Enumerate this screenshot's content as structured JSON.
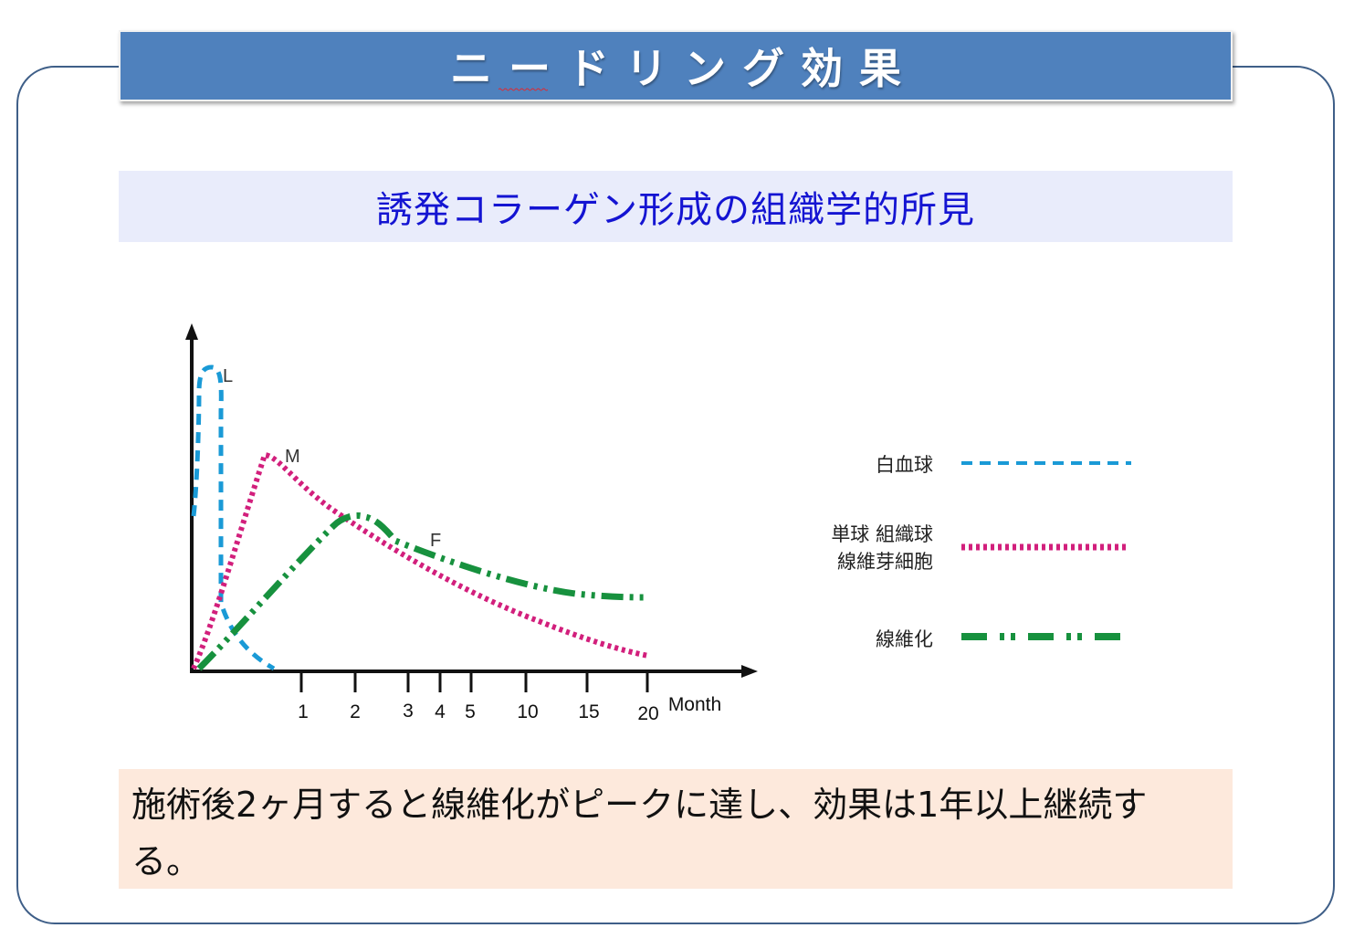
{
  "slide": {
    "title": "ニードリング効果",
    "subtitle": "誘発コラーゲン形成の組織学的所見",
    "note": "施術後2ヶ月すると線維化がピークに達し、効果は1年以上継続する。"
  },
  "legend": {
    "items": [
      {
        "lines": [
          "白血球"
        ],
        "color": "#1a9ad6",
        "style": "dashed"
      },
      {
        "lines": [
          "単球 組織球",
          "線維芽細胞"
        ],
        "color": "#d21f7c",
        "style": "dotted"
      },
      {
        "lines": [
          "線維化"
        ],
        "color": "#17913e",
        "style": "dash-dot-dot"
      }
    ]
  },
  "chart_data": {
    "type": "line",
    "title": "",
    "xlabel": "Month",
    "ylabel": "",
    "x_ticks": [
      "1",
      "2",
      "3",
      "4",
      "5",
      "10",
      "15",
      "20"
    ],
    "y_ticks": [],
    "grid": false,
    "legend_position": "right",
    "series": [
      {
        "name": "L",
        "legend": "白血球",
        "color": "#1a9ad6",
        "style": "dashed"
      },
      {
        "name": "M",
        "legend": "単球 組織球 線維芽細胞",
        "color": "#d21f7c",
        "style": "dotted"
      },
      {
        "name": "F",
        "legend": "線維化",
        "color": "#17913e",
        "style": "dash-dot-dot"
      }
    ]
  }
}
